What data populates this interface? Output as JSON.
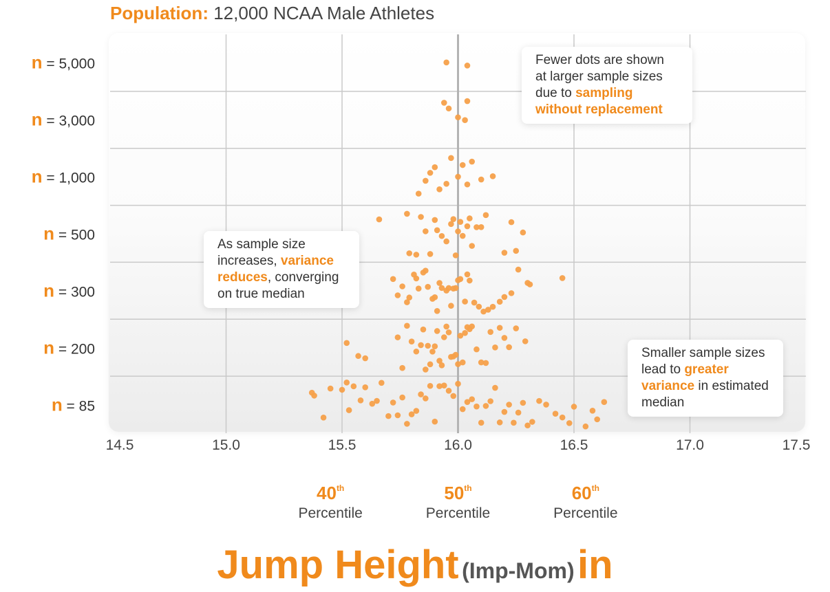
{
  "header": {
    "title_label": "Population:",
    "title_text": "12,000 NCAA Male Athletes"
  },
  "percentiles": [
    {
      "num": "40",
      "suffix": "th",
      "word": "Percentile",
      "value": 15.45
    },
    {
      "num": "50",
      "suffix": "th",
      "word": "Percentile",
      "value": 16.0
    },
    {
      "num": "60",
      "suffix": "th",
      "word": "Percentile",
      "value": 16.55
    }
  ],
  "annotations": {
    "top_right": {
      "pre": "Fewer dots are shown at larger sample sizes due to ",
      "hl": "sampling without replacement",
      "post": ""
    },
    "mid_left": {
      "pre": "As sample size increases, ",
      "hl": "variance reduces",
      "post": ", converging on true median"
    },
    "bottom_right": {
      "pre": "Smaller sample sizes lead to ",
      "hl": "greater variance",
      "post": " in estimated median"
    }
  },
  "xtitle": {
    "main": "Jump Height",
    "unit_paren": "(Imp-Mom)",
    "unit": "in"
  },
  "colors": {
    "accent": "#f08a1c",
    "dot": "#f5a04a",
    "grid": "#c9c9c9",
    "median_line": "#b3b3b3"
  },
  "chart_data": {
    "type": "scatter",
    "title": "Population: 12,000 NCAA Male Athletes",
    "xlabel": "Jump Height (Imp-Mom) in",
    "ylabel": "",
    "xlim": [
      14.5,
      17.5
    ],
    "xticks": [
      "14.5",
      "15.0",
      "15.5",
      "16.0",
      "16.5",
      "17.0",
      "17.5"
    ],
    "ylabel_prefix": "n",
    "categories": [
      "85",
      "200",
      "300",
      "500",
      "1,000",
      "3,000",
      "5,000"
    ],
    "grid": true,
    "median_reference": 16.0,
    "series": [
      {
        "n": "5,000",
        "x": [
          15.95,
          16.04
        ]
      },
      {
        "n": "3,000",
        "x": [
          15.94,
          15.96,
          16.0,
          16.03,
          16.04
        ]
      },
      {
        "n": "1,000",
        "x": [
          15.83,
          15.86,
          15.88,
          15.9,
          15.92,
          15.95,
          15.97,
          16.0,
          16.02,
          16.04,
          16.06,
          16.1,
          16.15
        ]
      },
      {
        "n": "500",
        "x": [
          15.66,
          15.78,
          15.79,
          15.82,
          15.84,
          15.86,
          15.88,
          15.9,
          15.91,
          15.93,
          15.95,
          15.97,
          15.98,
          15.99,
          16.0,
          16.01,
          16.02,
          16.04,
          16.05,
          16.06,
          16.08,
          16.1,
          16.12,
          16.2,
          16.23,
          16.25,
          16.28
        ]
      },
      {
        "n": "300",
        "x": [
          15.72,
          15.74,
          15.76,
          15.78,
          15.79,
          15.81,
          15.82,
          15.83,
          15.85,
          15.86,
          15.87,
          15.89,
          15.9,
          15.91,
          15.92,
          15.93,
          15.95,
          15.96,
          15.97,
          15.98,
          15.99,
          16.0,
          16.01,
          16.03,
          16.04,
          16.05,
          16.07,
          16.09,
          16.11,
          16.13,
          16.15,
          16.18,
          16.2,
          16.23,
          16.26,
          16.3,
          16.31,
          16.45
        ]
      },
      {
        "n": "200",
        "x": [
          15.52,
          15.57,
          15.6,
          15.74,
          15.76,
          15.78,
          15.8,
          15.82,
          15.84,
          15.85,
          15.86,
          15.87,
          15.88,
          15.89,
          15.9,
          15.91,
          15.92,
          15.93,
          15.94,
          15.95,
          15.96,
          15.97,
          15.98,
          15.99,
          16.0,
          16.01,
          16.02,
          16.03,
          16.04,
          16.05,
          16.06,
          16.08,
          16.1,
          16.12,
          16.14,
          16.16,
          16.18,
          16.2,
          16.22,
          16.25,
          16.29
        ]
      },
      {
        "n": "85",
        "x": [
          15.37,
          15.38,
          15.42,
          15.45,
          15.5,
          15.52,
          15.53,
          15.55,
          15.58,
          15.6,
          15.63,
          15.65,
          15.67,
          15.7,
          15.72,
          15.74,
          15.76,
          15.78,
          15.8,
          15.82,
          15.84,
          15.86,
          15.88,
          15.9,
          15.92,
          15.94,
          15.96,
          15.98,
          16.0,
          16.02,
          16.04,
          16.06,
          16.08,
          16.1,
          16.12,
          16.14,
          16.16,
          16.18,
          16.2,
          16.22,
          16.24,
          16.26,
          16.28,
          16.3,
          16.32,
          16.35,
          16.38,
          16.42,
          16.45,
          16.48,
          16.5,
          16.55,
          16.58,
          16.6,
          16.63
        ]
      }
    ]
  }
}
